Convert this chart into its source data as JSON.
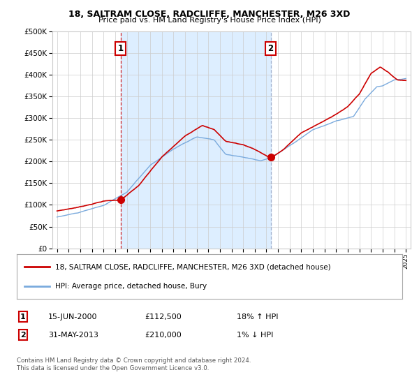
{
  "title": "18, SALTRAM CLOSE, RADCLIFFE, MANCHESTER, M26 3XD",
  "subtitle": "Price paid vs. HM Land Registry's House Price Index (HPI)",
  "legend_line1": "18, SALTRAM CLOSE, RADCLIFFE, MANCHESTER, M26 3XD (detached house)",
  "legend_line2": "HPI: Average price, detached house, Bury",
  "annotation1_date": "15-JUN-2000",
  "annotation1_price": "£112,500",
  "annotation1_hpi": "18% ↑ HPI",
  "annotation2_date": "31-MAY-2013",
  "annotation2_price": "£210,000",
  "annotation2_hpi": "1% ↓ HPI",
  "footer": "Contains HM Land Registry data © Crown copyright and database right 2024.\nThis data is licensed under the Open Government Licence v3.0.",
  "ylim": [
    0,
    500000
  ],
  "yticks": [
    0,
    50000,
    100000,
    150000,
    200000,
    250000,
    300000,
    350000,
    400000,
    450000,
    500000
  ],
  "red_color": "#cc0000",
  "blue_color": "#7aaadd",
  "dashed1_color": "#cc0000",
  "dashed2_color": "#8899bb",
  "fill_color": "#ddeeff",
  "background_color": "#ffffff",
  "grid_color": "#cccccc",
  "sale1_year": 2000.46,
  "sale1_value": 112500,
  "sale2_year": 2013.37,
  "sale2_value": 210000
}
